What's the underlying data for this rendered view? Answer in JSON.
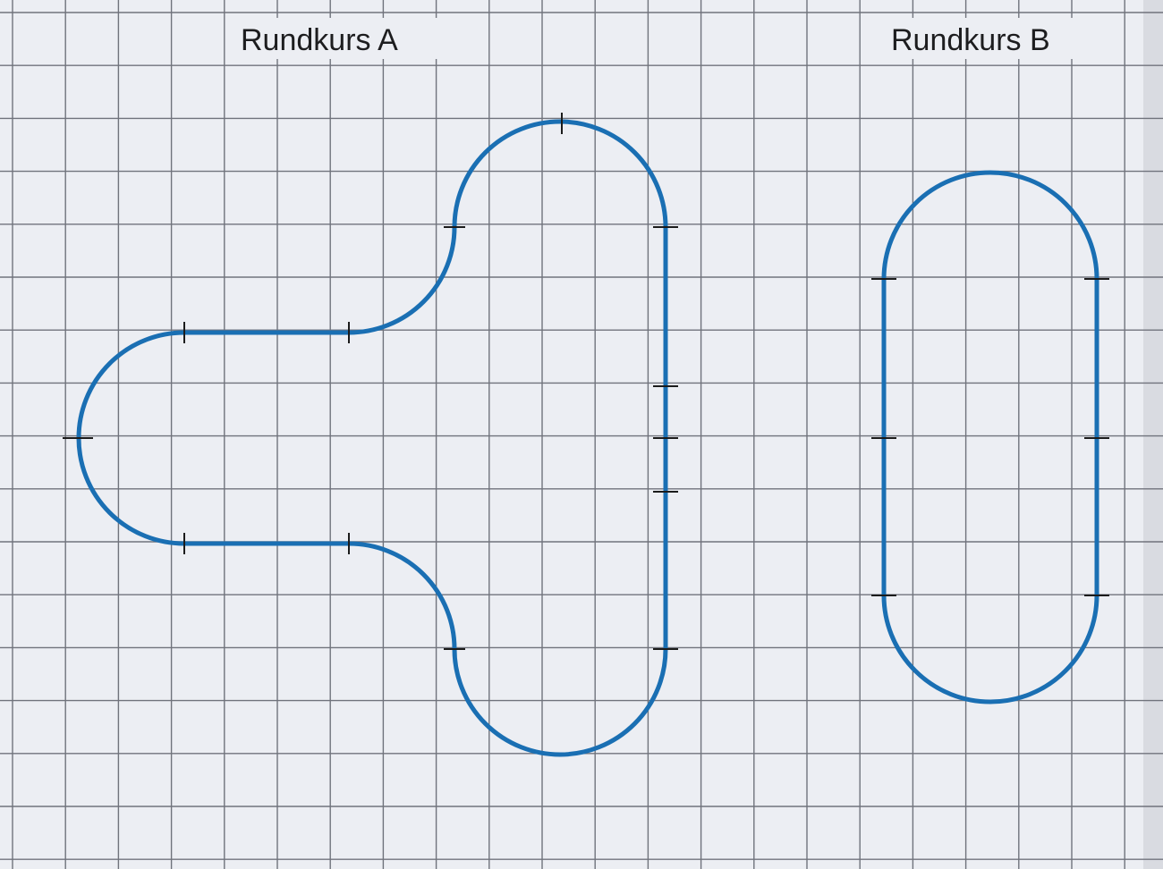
{
  "course_a": {
    "label": "Rundkurs A"
  },
  "course_b": {
    "label": "Rundkurs B"
  },
  "colors": {
    "paper": "#eceef3",
    "grid": "#70737c",
    "track": "#1a6fb3",
    "tick": "#1b1b1b",
    "text": "#1d1d1f"
  }
}
